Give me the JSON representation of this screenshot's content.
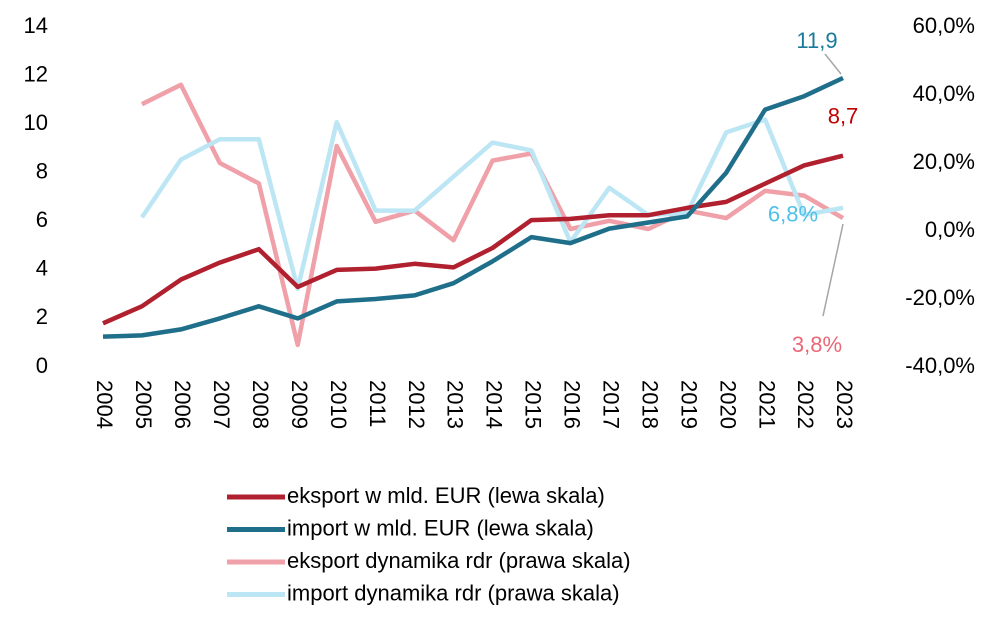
{
  "chart_data": {
    "type": "line",
    "categories": [
      "2004",
      "2005",
      "2006",
      "2007",
      "2008",
      "2009",
      "2010",
      "2011",
      "2012",
      "2013",
      "2014",
      "2015",
      "2016",
      "2017",
      "2018",
      "2019",
      "2020",
      "2021",
      "2022",
      "2023"
    ],
    "ylim": [
      0,
      14
    ],
    "yticks": [
      0,
      2,
      4,
      6,
      8,
      10,
      12,
      14
    ],
    "y2lim": [
      -40,
      60
    ],
    "y2ticks": [
      {
        "value": -40,
        "label": "-40,0%"
      },
      {
        "value": -20,
        "label": "-20,0%"
      },
      {
        "value": 0,
        "label": "0,0%"
      },
      {
        "value": 20,
        "label": "20,0%"
      },
      {
        "value": 40,
        "label": "40,0%"
      },
      {
        "value": 60,
        "label": "60,0%"
      }
    ],
    "legend": "bottom",
    "series": [
      {
        "name": "eksport w mld. EUR (lewa skala)",
        "color": "#b0202e",
        "values": [
          1.8,
          2.5,
          3.6,
          4.3,
          4.85,
          3.3,
          4.0,
          4.05,
          4.25,
          4.1,
          4.9,
          6.05,
          6.1,
          6.25,
          6.25,
          6.55,
          6.8,
          7.55,
          8.3,
          8.7
        ],
        "value_labels": [
          null,
          null,
          null,
          null,
          null,
          null,
          null,
          null,
          null,
          null,
          null,
          null,
          null,
          null,
          null,
          null,
          null,
          null,
          null,
          "8,7"
        ]
      },
      {
        "name": "import w mld. EUR (lewa skala)",
        "color": "#1f6f8b",
        "values": [
          1.25,
          1.3,
          1.55,
          2.0,
          2.5,
          2.0,
          2.7,
          2.8,
          2.95,
          3.45,
          4.35,
          5.35,
          5.1,
          5.7,
          5.95,
          6.2,
          8.0,
          10.6,
          11.15,
          11.9
        ],
        "value_labels": [
          null,
          null,
          null,
          null,
          null,
          null,
          null,
          null,
          null,
          null,
          null,
          null,
          null,
          null,
          null,
          null,
          null,
          null,
          null,
          "11,9"
        ]
      },
      {
        "name": "eksport dynamika rdr (prawa skala)",
        "color": "#f0a0a8",
        "axis": "y2",
        "values": [
          null,
          37.3,
          43,
          20,
          14,
          -33.5,
          25,
          2.7,
          6,
          -2.7,
          20.7,
          22.8,
          0.6,
          3,
          0.6,
          6,
          3.8,
          11.8,
          10.4,
          3.8
        ],
        "value_labels": [
          null,
          null,
          null,
          null,
          null,
          null,
          null,
          null,
          null,
          null,
          null,
          null,
          null,
          null,
          null,
          null,
          null,
          null,
          null,
          "3,8%"
        ]
      },
      {
        "name": "import dynamika rdr (prawa skala)",
        "color": "#bde6f5",
        "axis": "y2",
        "values": [
          null,
          4,
          21,
          27,
          27,
          -17,
          32,
          6,
          6,
          16,
          26,
          23.7,
          -3.3,
          12.7,
          4.7,
          5.3,
          29,
          32.8,
          4.7,
          6.8
        ],
        "value_labels": [
          null,
          null,
          null,
          null,
          null,
          null,
          null,
          null,
          null,
          null,
          null,
          null,
          null,
          null,
          null,
          null,
          null,
          null,
          null,
          "6,8%"
        ]
      }
    ]
  }
}
